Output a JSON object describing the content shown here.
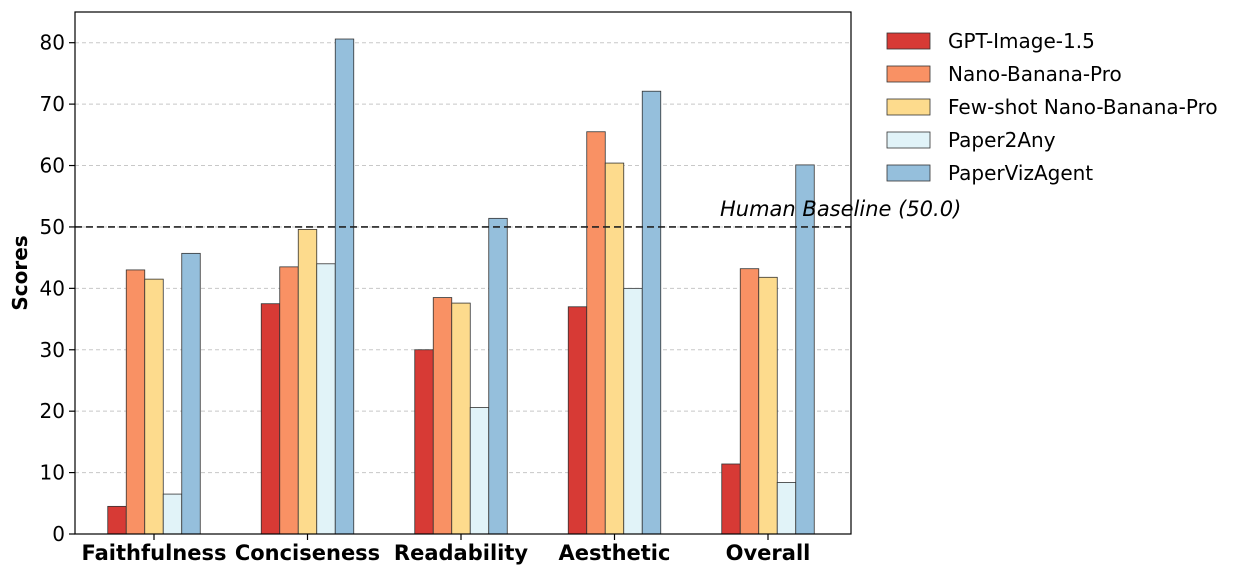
{
  "chart_data": {
    "type": "bar",
    "ylabel": "Scores",
    "ylim": [
      0,
      85
    ],
    "yticks": [
      "0",
      "10",
      "20",
      "30",
      "40",
      "50",
      "60",
      "70",
      "80"
    ],
    "grid": true,
    "legend_position": "outside-top-right",
    "categories": [
      "Faithfulness",
      "Conciseness",
      "Readability",
      "Aesthetic",
      "Overall"
    ],
    "series": [
      {
        "name": "GPT-Image-1.5",
        "color": "#d73a35",
        "values": [
          4.5,
          37.5,
          30.0,
          37.0,
          11.4
        ]
      },
      {
        "name": "Nano-Banana-Pro",
        "color": "#f99164",
        "values": [
          43.0,
          43.5,
          38.5,
          65.5,
          43.2
        ]
      },
      {
        "name": "Few-shot Nano-Banana-Pro",
        "color": "#fddb8d",
        "values": [
          41.5,
          49.6,
          37.6,
          60.4,
          41.8
        ]
      },
      {
        "name": "Paper2Any",
        "color": "#e1f3f8",
        "values": [
          6.5,
          44.0,
          20.6,
          40.0,
          8.4
        ]
      },
      {
        "name": "PaperVizAgent",
        "color": "#95bfdc",
        "values": [
          45.7,
          80.6,
          51.4,
          72.1,
          60.1
        ]
      }
    ],
    "reference_line": {
      "label": "Human Baseline (50.0)",
      "value": 50.0,
      "style": "dashed"
    }
  }
}
